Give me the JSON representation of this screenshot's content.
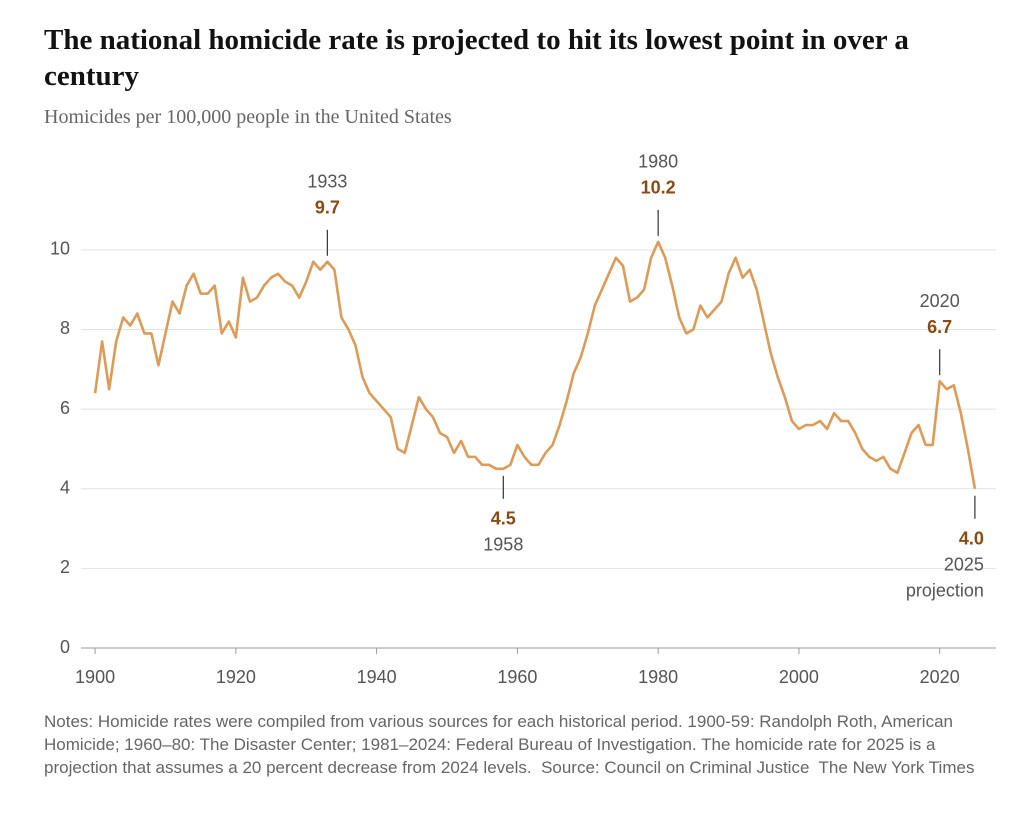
{
  "chart_data": {
    "type": "line",
    "title": "The national homicide rate is projected to hit its lowest point in over a century",
    "subtitle": "Homicides per 100,000 people in the United States",
    "x": [
      1900,
      1901,
      1902,
      1903,
      1904,
      1905,
      1906,
      1907,
      1908,
      1909,
      1910,
      1911,
      1912,
      1913,
      1914,
      1915,
      1916,
      1917,
      1918,
      1919,
      1920,
      1921,
      1922,
      1923,
      1924,
      1925,
      1926,
      1927,
      1928,
      1929,
      1930,
      1931,
      1932,
      1933,
      1934,
      1935,
      1936,
      1937,
      1938,
      1939,
      1940,
      1941,
      1942,
      1943,
      1944,
      1945,
      1946,
      1947,
      1948,
      1949,
      1950,
      1951,
      1952,
      1953,
      1954,
      1955,
      1956,
      1957,
      1958,
      1959,
      1960,
      1961,
      1962,
      1963,
      1964,
      1965,
      1966,
      1967,
      1968,
      1969,
      1970,
      1971,
      1972,
      1973,
      1974,
      1975,
      1976,
      1977,
      1978,
      1979,
      1980,
      1981,
      1982,
      1983,
      1984,
      1985,
      1986,
      1987,
      1988,
      1989,
      1990,
      1991,
      1992,
      1993,
      1994,
      1995,
      1996,
      1997,
      1998,
      1999,
      2000,
      2001,
      2002,
      2003,
      2004,
      2005,
      2006,
      2007,
      2008,
      2009,
      2010,
      2011,
      2012,
      2013,
      2014,
      2015,
      2016,
      2017,
      2018,
      2019,
      2020,
      2021,
      2022,
      2023,
      2024,
      2025
    ],
    "values": [
      6.4,
      7.7,
      6.5,
      7.7,
      8.3,
      8.1,
      8.4,
      7.9,
      7.9,
      7.1,
      7.9,
      8.7,
      8.4,
      9.1,
      9.4,
      8.9,
      8.9,
      9.1,
      7.9,
      8.2,
      7.8,
      9.3,
      8.7,
      8.8,
      9.1,
      9.3,
      9.4,
      9.2,
      9.1,
      8.8,
      9.2,
      9.7,
      9.5,
      9.7,
      9.5,
      8.3,
      8.0,
      7.6,
      6.8,
      6.4,
      6.2,
      6.0,
      5.8,
      5.0,
      4.9,
      5.6,
      6.3,
      6.0,
      5.8,
      5.4,
      5.3,
      4.9,
      5.2,
      4.8,
      4.8,
      4.6,
      4.6,
      4.5,
      4.5,
      4.6,
      5.1,
      4.8,
      4.6,
      4.6,
      4.9,
      5.1,
      5.6,
      6.2,
      6.9,
      7.3,
      7.9,
      8.6,
      9.0,
      9.4,
      9.8,
      9.6,
      8.7,
      8.8,
      9.0,
      9.8,
      10.2,
      9.8,
      9.1,
      8.3,
      7.9,
      8.0,
      8.6,
      8.3,
      8.5,
      8.7,
      9.4,
      9.8,
      9.3,
      9.5,
      9.0,
      8.2,
      7.4,
      6.8,
      6.3,
      5.7,
      5.5,
      5.6,
      5.6,
      5.7,
      5.5,
      5.9,
      5.7,
      5.7,
      5.4,
      5.0,
      4.8,
      4.7,
      4.8,
      4.5,
      4.4,
      4.9,
      5.4,
      5.6,
      5.1,
      5.1,
      6.7,
      6.5,
      6.6,
      5.9,
      5.0,
      4.0
    ],
    "color": "#dd9b57",
    "xlim": [
      1898,
      2028
    ],
    "xticks": [
      1900,
      1920,
      1940,
      1960,
      1980,
      2000,
      2020
    ],
    "ylim": [
      0,
      11
    ],
    "yticks": [
      0,
      2,
      4,
      6,
      8,
      10
    ],
    "grid": true,
    "annotations": [
      {
        "year": 1933,
        "value": 9.7,
        "position": "above"
      },
      {
        "year": 1958,
        "value": 4.5,
        "position": "below"
      },
      {
        "year": 1980,
        "value": 10.2,
        "position": "above"
      },
      {
        "year": 2020,
        "value": 6.7,
        "position": "above"
      },
      {
        "year": 2025,
        "value": 4,
        "value_label": "4.0",
        "note": "projection",
        "position": "below"
      }
    ],
    "notes": "Notes: Homicide rates were compiled from various sources for each historical period. 1900-59: Randolph Roth, American Homicide; 1960–80: The Disaster Center; 1981–2024: Federal Bureau of Investigation. The homicide rate for 2025 is a projection that assumes a 20 percent decrease from 2024 levels.",
    "source": "Source: Council on Criminal Justice",
    "credit": "The New York Times"
  }
}
